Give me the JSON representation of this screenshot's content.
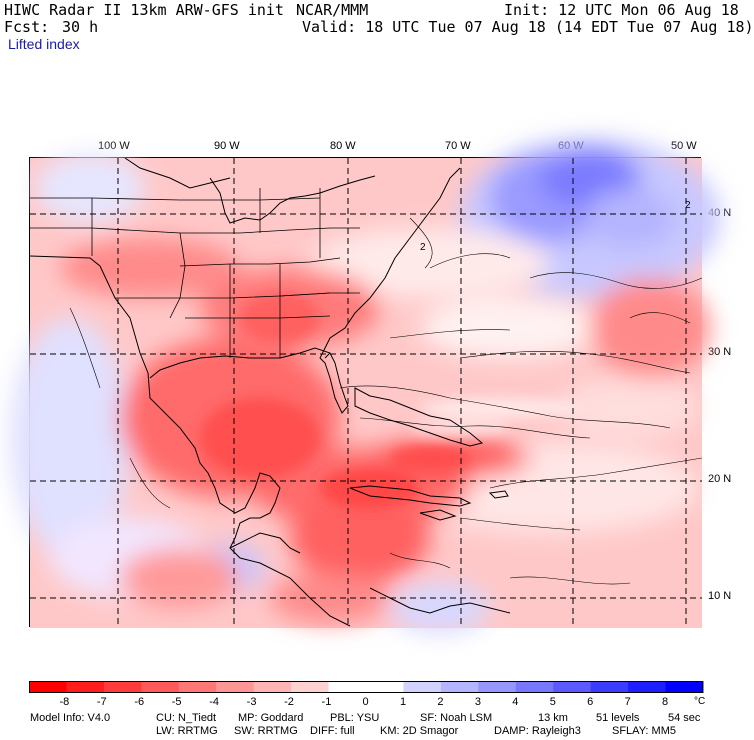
{
  "header": {
    "title": "HIWC Radar II 13km ARW-GFS init",
    "source": "NCAR/MMM",
    "init": "Init: 12 UTC Mon 06 Aug 18",
    "fcst_label": "Fcst:",
    "fcst_value": "30 h",
    "valid": "Valid: 18 UTC Tue 07 Aug 18 (14 EDT Tue 07 Aug 18)",
    "field": "Lifted index"
  },
  "map": {
    "lon_labels": [
      "100 W",
      "90 W",
      "80 W",
      "70 W",
      "60 W",
      "50 W"
    ],
    "lat_labels": [
      "40 N",
      "30 N",
      "20 N",
      "10 N"
    ],
    "contour_label": "2"
  },
  "colorbar": {
    "colors": [
      "#ff0000",
      "#ff1e1e",
      "#ff3c3c",
      "#ff5a5a",
      "#ff7878",
      "#ff9696",
      "#ffb4b4",
      "#ffd2d2",
      "#ffffff",
      "#ffffff",
      "#d2d2ff",
      "#b4b4ff",
      "#9696ff",
      "#7878ff",
      "#5a5aff",
      "#3c3cff",
      "#1e1eff",
      "#0000ff"
    ],
    "labels": [
      "-8",
      "-7",
      "-6",
      "-5",
      "-4",
      "-3",
      "-2",
      "-1",
      "0",
      "1",
      "2",
      "3",
      "4",
      "5",
      "6",
      "7",
      "8"
    ],
    "unit": "°C"
  },
  "info": {
    "line1": [
      "Model Info: V4.0",
      "CU: N_Tiedt",
      "MP: Goddard",
      "PBL: YSU",
      "SF: Noah LSM",
      "13 km",
      "51 levels",
      "54 sec"
    ],
    "line2": [
      "LW: RRTMG",
      "SW: RRTMG",
      "DIFF: full",
      "KM: 2D Smagor",
      "DAMP: Rayleigh3",
      "SFLAY: MM5"
    ]
  }
}
